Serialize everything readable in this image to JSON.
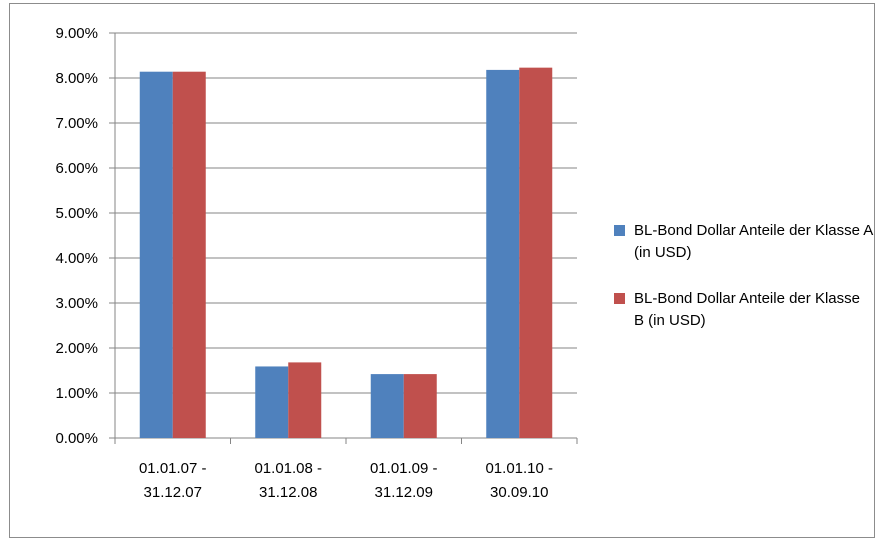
{
  "chart_data": {
    "type": "bar",
    "categories": [
      [
        "01.01.07 -",
        "31.12.07"
      ],
      [
        "01.01.08 -",
        "31.12.08"
      ],
      [
        "01.01.09 -",
        "31.12.09"
      ],
      [
        "01.01.10 -",
        "30.09.10"
      ]
    ],
    "series": [
      {
        "name": "BL-Bond Dollar Anteile der Klasse A (in USD)",
        "values": [
          8.14,
          1.59,
          1.42,
          8.18
        ],
        "color": "#4f81bd"
      },
      {
        "name": "BL-Bond Dollar Anteile der Klasse B (in USD)",
        "values": [
          8.14,
          1.68,
          1.42,
          8.23
        ],
        "color": "#c0504d"
      }
    ],
    "yticks": [
      "0.00%",
      "1.00%",
      "2.00%",
      "3.00%",
      "4.00%",
      "5.00%",
      "6.00%",
      "7.00%",
      "8.00%",
      "9.00%"
    ],
    "ylim": [
      0,
      9
    ],
    "grid": true,
    "legend_position": "right",
    "title": "",
    "xlabel": "",
    "ylabel": ""
  },
  "legend": {
    "item_a": "BL-Bond Dollar Anteile der Klasse A (in USD)",
    "item_b": "BL-Bond Dollar Anteile der Klasse B (in USD)"
  }
}
